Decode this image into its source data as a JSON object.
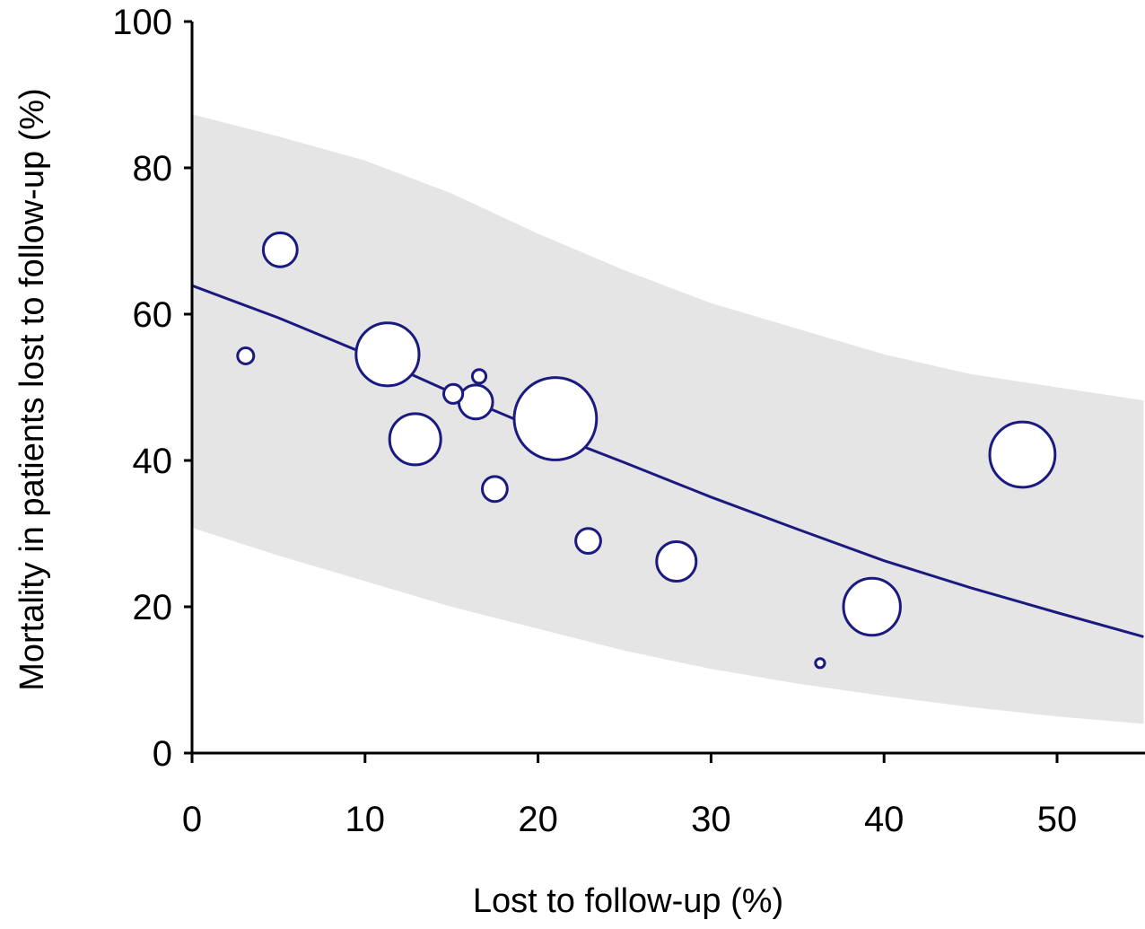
{
  "chart_data": {
    "type": "scatter",
    "title": "",
    "xlabel": "Lost to follow-up (%)",
    "ylabel": "Mortality in patients lost to follow-up (%)",
    "xlim": [
      0,
      55
    ],
    "ylim": [
      0,
      100
    ],
    "xticks": [
      0,
      10,
      20,
      30,
      40,
      50
    ],
    "yticks": [
      0,
      20,
      40,
      60,
      80,
      100
    ],
    "grid": false,
    "legend": "none",
    "bubble_color": "#1a1a80",
    "fit_color": "#1a1a80",
    "band_color": "#e5e5e5",
    "points": [
      {
        "x": 3.1,
        "y": 54.3,
        "weight": 0.25
      },
      {
        "x": 5.1,
        "y": 68.8,
        "weight": 1.1
      },
      {
        "x": 11.3,
        "y": 54.5,
        "weight": 3.8
      },
      {
        "x": 12.9,
        "y": 42.9,
        "weight": 2.5
      },
      {
        "x": 15.1,
        "y": 49.1,
        "weight": 0.35
      },
      {
        "x": 16.4,
        "y": 48.0,
        "weight": 1.1
      },
      {
        "x": 16.6,
        "y": 51.5,
        "weight": 0.18
      },
      {
        "x": 17.5,
        "y": 36.1,
        "weight": 0.6
      },
      {
        "x": 21.0,
        "y": 45.7,
        "weight": 6.5
      },
      {
        "x": 22.9,
        "y": 29.0,
        "weight": 0.6
      },
      {
        "x": 28.0,
        "y": 26.2,
        "weight": 1.5
      },
      {
        "x": 36.3,
        "y": 12.3,
        "weight": 0.08
      },
      {
        "x": 39.3,
        "y": 20.0,
        "weight": 3.1
      },
      {
        "x": 48.0,
        "y": 40.8,
        "weight": 4.1
      }
    ],
    "fit_line": {
      "x": [
        0,
        5,
        10,
        15,
        20,
        25,
        30,
        35,
        40,
        45,
        50,
        55
      ],
      "y": [
        63.9,
        59.5,
        54.6,
        49.3,
        44.3,
        39.7,
        35.0,
        30.6,
        26.3,
        22.6,
        19.2,
        15.9
      ]
    },
    "ci_band": {
      "x": [
        0,
        5,
        10,
        15,
        20,
        25,
        30,
        35,
        40,
        45,
        50,
        55
      ],
      "upper": [
        87.3,
        84.3,
        81.0,
        76.5,
        71.0,
        66.0,
        61.5,
        58.0,
        54.5,
        51.8,
        50.0,
        48.2
      ],
      "lower": [
        30.8,
        27.0,
        23.5,
        20.0,
        17.0,
        14.0,
        11.5,
        9.5,
        7.8,
        6.3,
        5.0,
        4.0
      ]
    }
  }
}
